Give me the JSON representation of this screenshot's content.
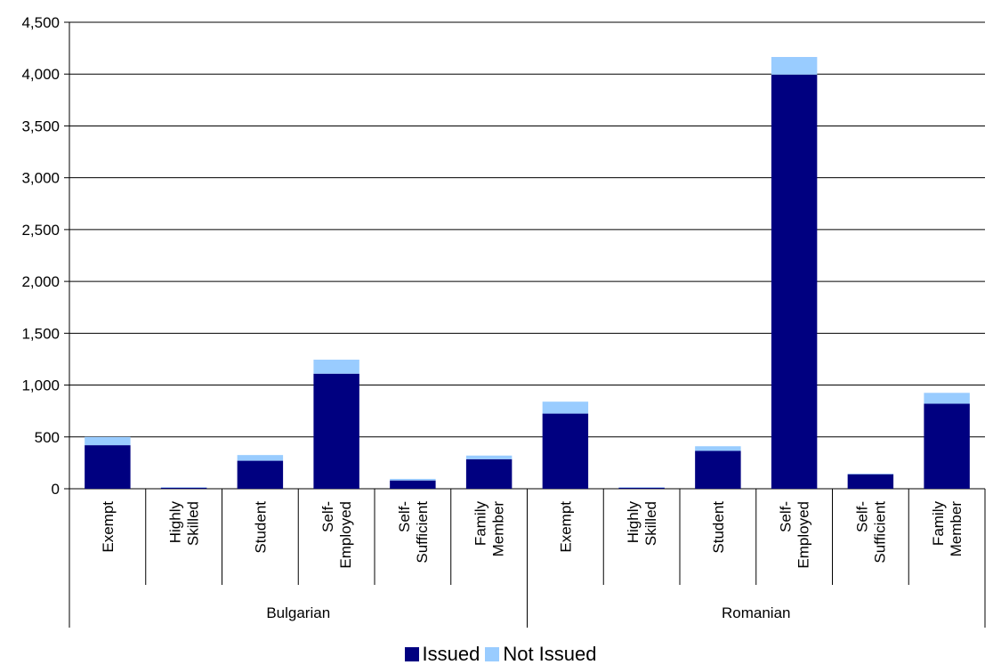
{
  "chart_data": {
    "type": "bar",
    "stacked": true,
    "title": "",
    "xlabel": "",
    "ylabel": "",
    "ylim": [
      0,
      4500
    ],
    "yticks": [
      0,
      500,
      1000,
      1500,
      2000,
      2500,
      3000,
      3500,
      4000,
      4500
    ],
    "ytick_labels": [
      "0",
      "500",
      "1,000",
      "1,500",
      "2,000",
      "2,500",
      "3,000",
      "3,500",
      "4,000",
      "4,500"
    ],
    "grid": true,
    "legend_position": "bottom",
    "groups": [
      {
        "label": "Bulgarian",
        "categories": [
          [
            "Exempt"
          ],
          [
            "Highly",
            "Skilled"
          ],
          [
            "Student"
          ],
          [
            "Self-",
            "Employed"
          ],
          [
            "Self-",
            "Sufficient"
          ],
          [
            "Family",
            "Member"
          ]
        ]
      },
      {
        "label": "Romanian",
        "categories": [
          [
            "Exempt"
          ],
          [
            "Highly",
            "Skilled"
          ],
          [
            "Student"
          ],
          [
            "Self-",
            "Employed"
          ],
          [
            "Self-",
            "Sufficient"
          ],
          [
            "Family",
            "Member"
          ]
        ]
      }
    ],
    "series": [
      {
        "name": "Issued",
        "color": "#000080",
        "values": [
          420,
          10,
          270,
          1110,
          80,
          285,
          725,
          10,
          365,
          3995,
          140,
          820
        ]
      },
      {
        "name": "Not Issued",
        "color": "#99ccff",
        "values": [
          80,
          5,
          55,
          135,
          15,
          35,
          115,
          5,
          45,
          170,
          5,
          105
        ]
      }
    ]
  }
}
